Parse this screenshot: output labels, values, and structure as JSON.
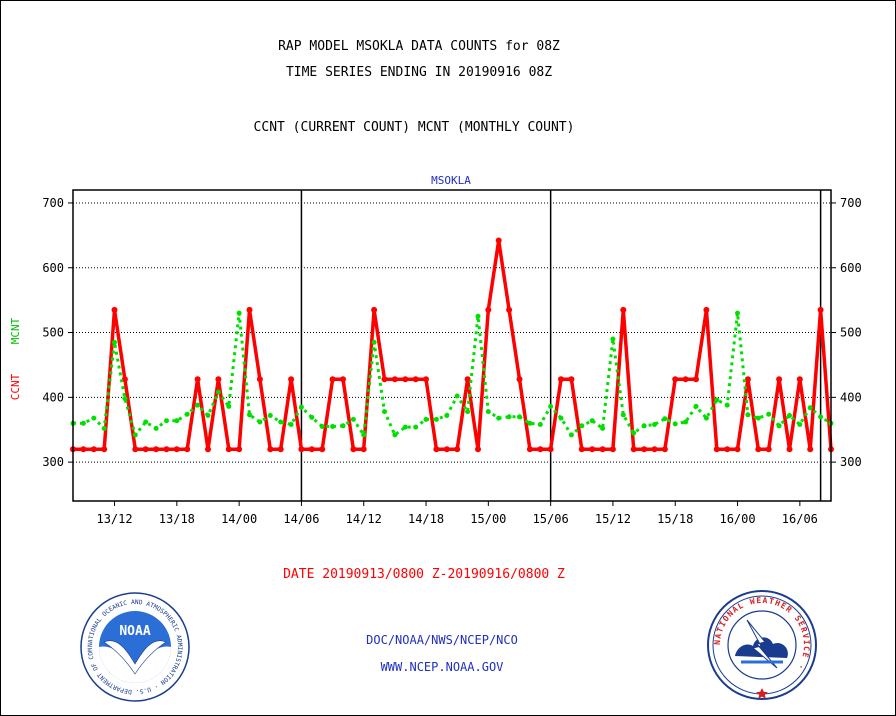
{
  "header": {
    "title_line1": "RAP MODEL MSOKLA DATA COUNTS for 08Z",
    "title_line2": "TIME SERIES ENDING IN 20190916 08Z",
    "subtitle": "CCNT (CURRENT COUNT) MCNT (MONTHLY COUNT)"
  },
  "footer": {
    "date_range": "DATE 20190913/0800 Z-20190916/0800 Z",
    "credit_line1": "DOC/NOAA/NWS/NCEP/NCO",
    "credit_line2": "WWW.NCEP.NOAA.GOV"
  },
  "logos": {
    "noaa_text": "NOAA",
    "noaa_ring_text": "NATIONAL OCEANIC AND ATMOSPHERIC ADMINISTRATION · U.S. DEPARTMENT OF COMMERCE ·",
    "nws_ring_text": "NATIONAL WEATHER SERVICE ·"
  },
  "colors": {
    "ccnt": "#ff0000",
    "mcnt": "#00e000",
    "title_blue": "#1f2fbf",
    "grid": "#000000"
  },
  "chart_data": {
    "type": "line",
    "title": "MSOKLA",
    "ylabel_primary": "CCNT",
    "ylabel_secondary": "MCNT",
    "x_start": "2019-09-13 08Z",
    "x_end": "2019-09-16 08Z",
    "x_interval_hours": 1,
    "x_tick_labels": [
      "13/12",
      "13/18",
      "14/00",
      "14/06",
      "14/12",
      "14/18",
      "15/00",
      "15/06",
      "15/12",
      "15/18",
      "16/00",
      "16/06"
    ],
    "day_boundaries": [
      "14/06",
      "15/06",
      "16/08"
    ],
    "ylim": [
      240,
      720
    ],
    "y_ticks": [
      300,
      400,
      500,
      600,
      700
    ],
    "grid": "horizontal dotted",
    "series": [
      {
        "name": "CCNT",
        "values": [
          320,
          320,
          320,
          320,
          535,
          428,
          320,
          320,
          320,
          320,
          320,
          320,
          428,
          320,
          428,
          320,
          320,
          535,
          428,
          320,
          320,
          428,
          320,
          320,
          320,
          428,
          428,
          320,
          320,
          535,
          428,
          428,
          428,
          428,
          428,
          320,
          320,
          320,
          428,
          320,
          535,
          642,
          535,
          428,
          320,
          320,
          320,
          428,
          428,
          320,
          320,
          320,
          320,
          535,
          320,
          320,
          320,
          320,
          428,
          428,
          428,
          535,
          320,
          320,
          320,
          428,
          320,
          320,
          428,
          320,
          428,
          320,
          535,
          320
        ]
      },
      {
        "name": "MCNT",
        "values": [
          360,
          360,
          368,
          352,
          485,
          398,
          342,
          362,
          352,
          364,
          364,
          374,
          388,
          372,
          408,
          386,
          530,
          373,
          362,
          372,
          362,
          358,
          385,
          369,
          355,
          355,
          356,
          366,
          342,
          485,
          378,
          342,
          354,
          354,
          366,
          366,
          372,
          402,
          378,
          525,
          378,
          368,
          370,
          370,
          360,
          358,
          386,
          368,
          342,
          356,
          364,
          352,
          490,
          373,
          345,
          356,
          358,
          367,
          359,
          362,
          386,
          368,
          396,
          388,
          530,
          373,
          368,
          374,
          356,
          372,
          358,
          384,
          370,
          360
        ]
      }
    ]
  }
}
